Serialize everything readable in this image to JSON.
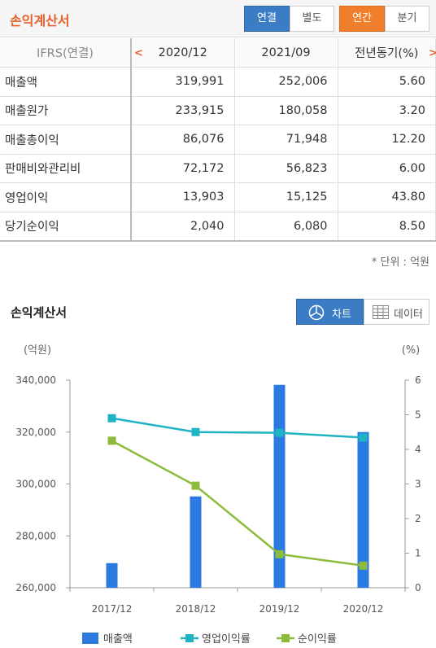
{
  "header": {
    "title": "손익계산서",
    "toggle_consolidated": "연결",
    "toggle_separate": "별도",
    "toggle_annual": "연간",
    "toggle_quarterly": "분기"
  },
  "table": {
    "label_header": "IFRS(연결)",
    "columns": [
      "2020/12",
      "2021/09",
      "전년동기(%)"
    ],
    "rows": [
      {
        "label": "매출액",
        "values": [
          "319,991",
          "252,006",
          "5.60"
        ]
      },
      {
        "label": "매출원가",
        "values": [
          "233,915",
          "180,058",
          "3.20"
        ]
      },
      {
        "label": "매출총이익",
        "values": [
          "86,076",
          "71,948",
          "12.20"
        ]
      },
      {
        "label": "판매비와관리비",
        "values": [
          "72,172",
          "56,823",
          "6.00"
        ]
      },
      {
        "label": "영업이익",
        "values": [
          "13,903",
          "15,125",
          "43.80"
        ]
      },
      {
        "label": "당기순이익",
        "values": [
          "2,040",
          "6,080",
          "8.50"
        ]
      }
    ],
    "unit_note": "* 단위 : 억원"
  },
  "chart_section": {
    "title": "손익계산서",
    "chart_button": "차트",
    "data_button": "데이터"
  },
  "chart_data": {
    "type": "bar",
    "categories": [
      "2017/12",
      "2018/12",
      "2019/12",
      "2020/12"
    ],
    "left_axis": {
      "unit": "(억원)",
      "ylim": [
        260000,
        340000
      ],
      "ticks": [
        260000,
        280000,
        300000,
        320000,
        340000
      ],
      "tick_labels": [
        "260,000",
        "280,000",
        "300,000",
        "320,000",
        "340,000"
      ]
    },
    "right_axis": {
      "unit": "(%)",
      "ylim": [
        0,
        6
      ],
      "ticks": [
        0,
        1,
        2,
        3,
        4,
        5,
        6
      ],
      "tick_labels": [
        "0",
        "1",
        "2",
        "3",
        "4",
        "5",
        "6"
      ]
    },
    "series": [
      {
        "name": "매출액",
        "kind": "bar",
        "axis": "left",
        "color": "#2a7ae2",
        "values": [
          269500,
          295200,
          338200,
          320000
        ]
      },
      {
        "name": "영업이익률",
        "kind": "line",
        "axis": "right",
        "color": "#1fb3c4",
        "values": [
          4.9,
          4.5,
          4.48,
          4.34
        ]
      },
      {
        "name": "순이익률",
        "kind": "line",
        "axis": "right",
        "color": "#8dbb3c",
        "values": [
          4.25,
          2.95,
          0.97,
          0.64
        ]
      }
    ],
    "grid": false,
    "legend_position": "bottom"
  }
}
